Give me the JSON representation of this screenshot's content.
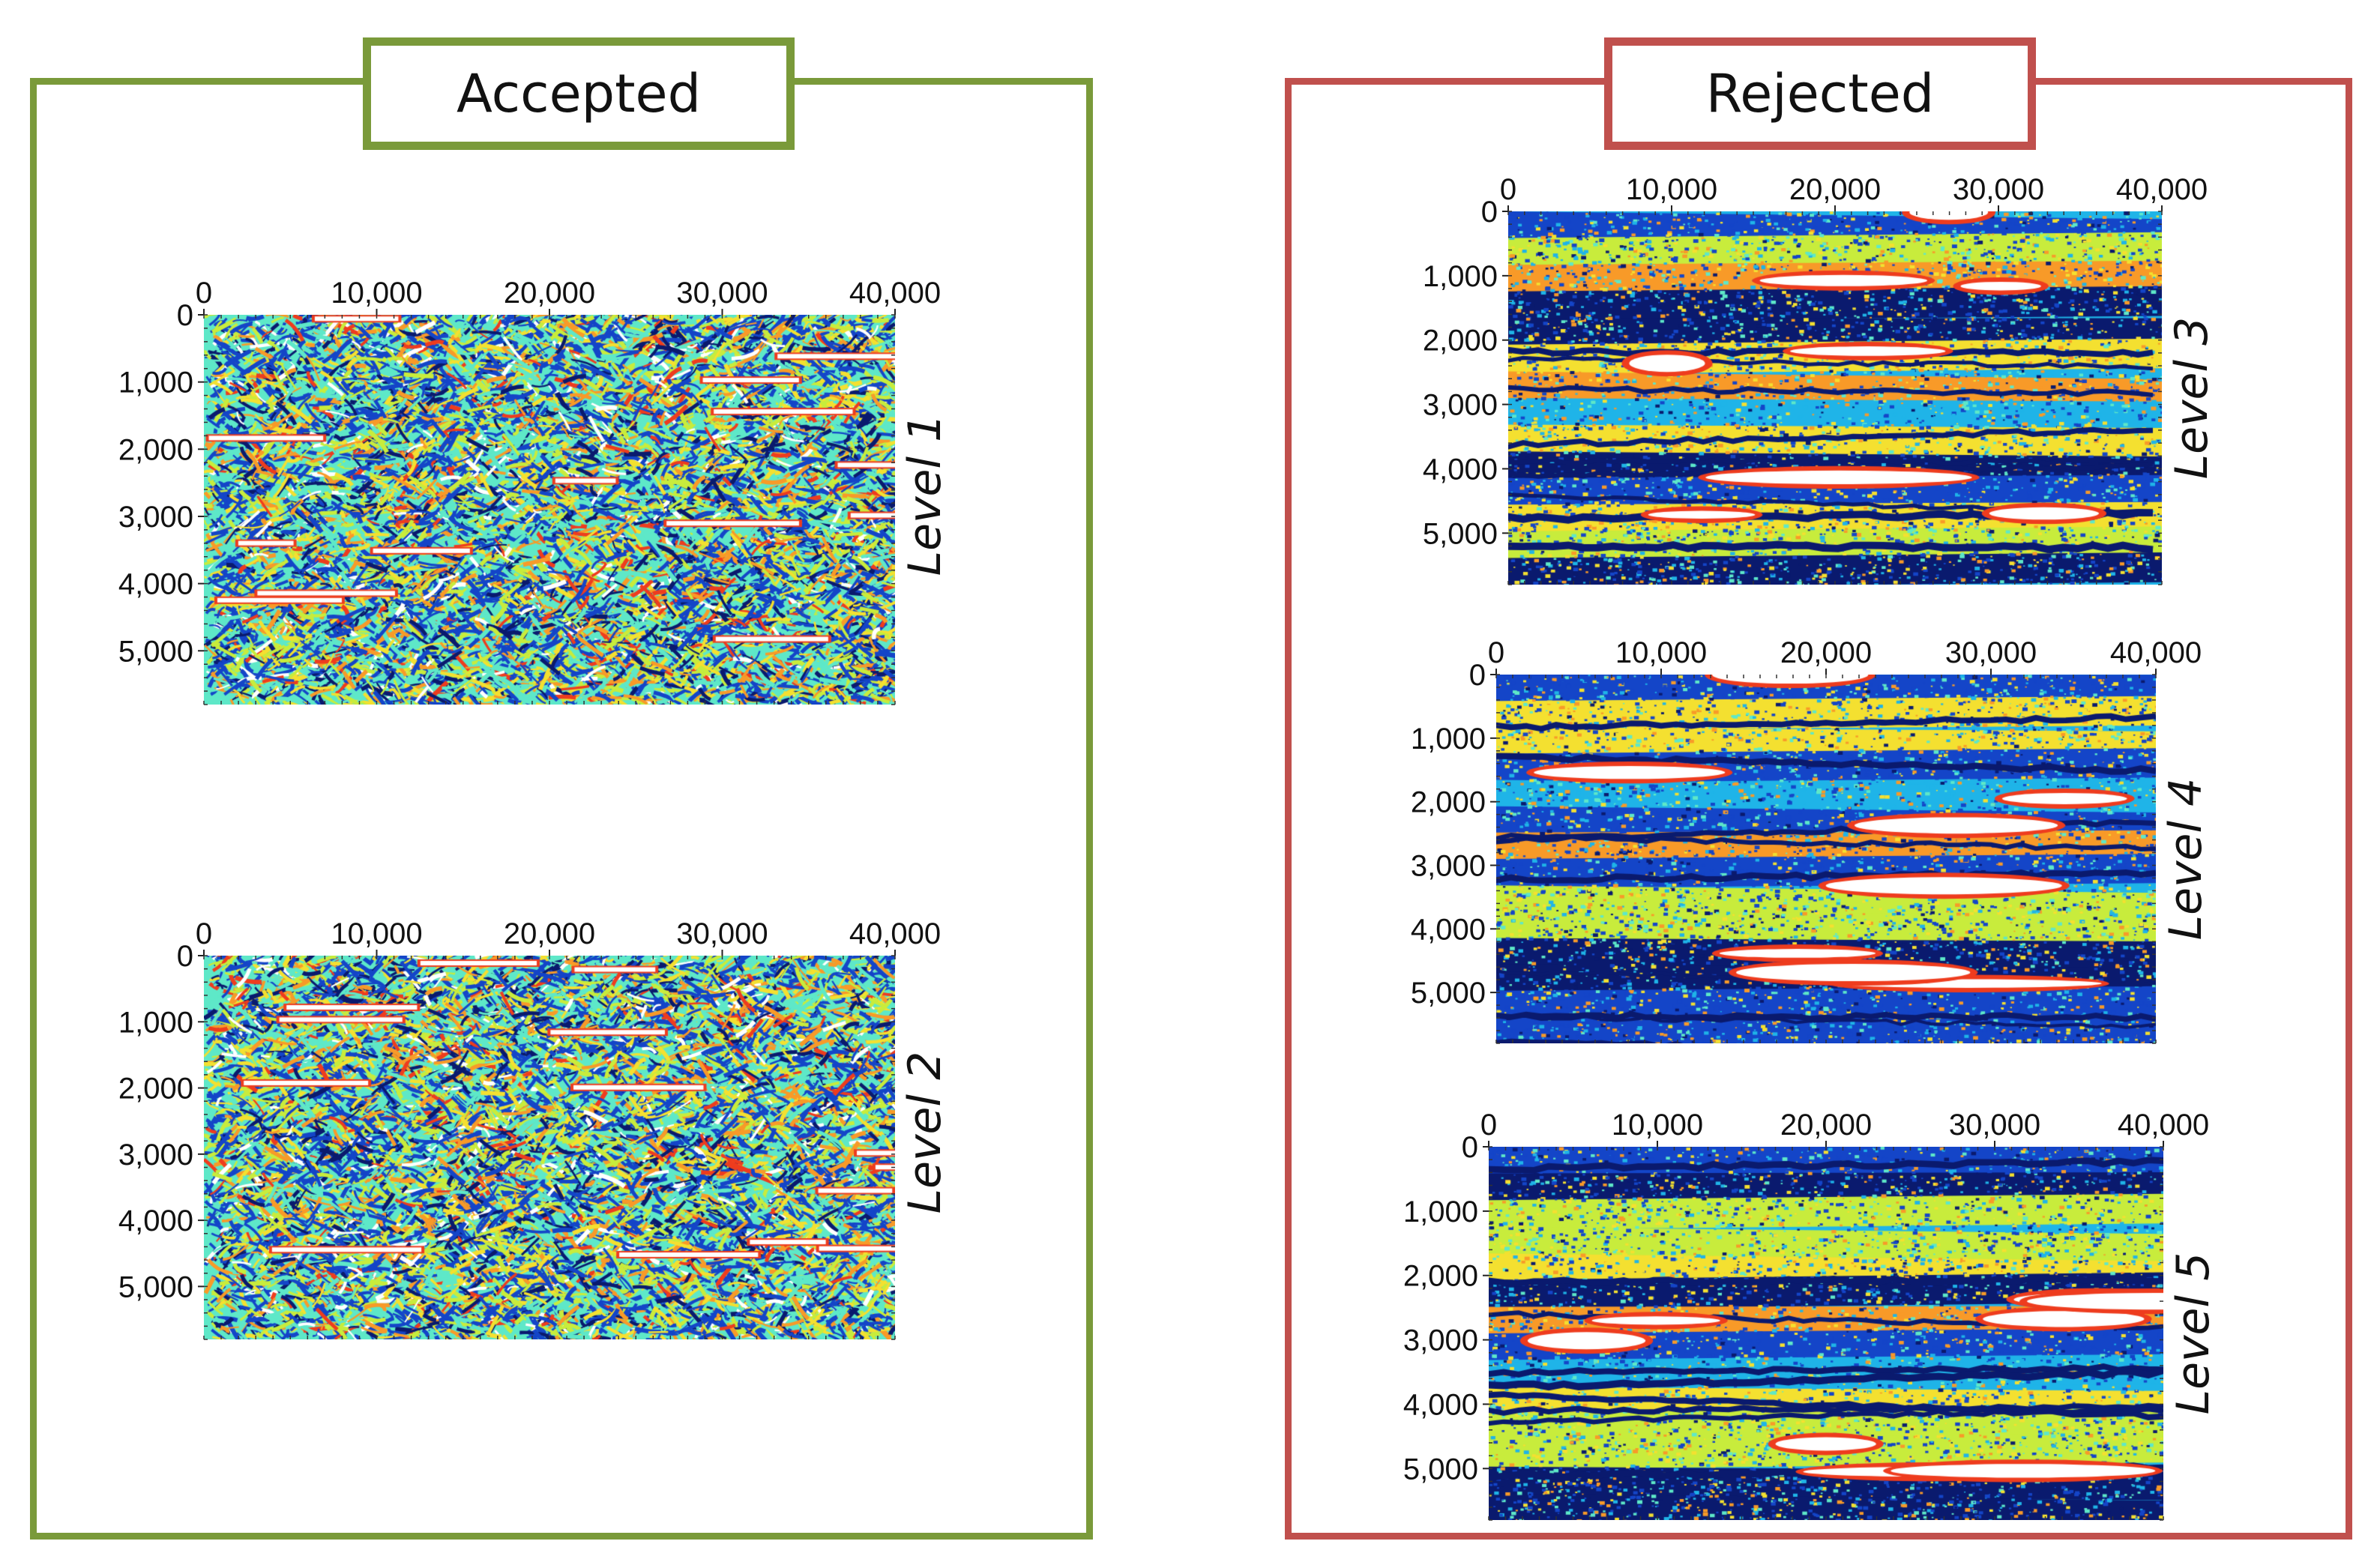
{
  "sections": {
    "accepted": {
      "title": "Accepted",
      "border_color": "#7a9a3a"
    },
    "rejected": {
      "title": "Rejected",
      "border_color": "#c0504d"
    }
  },
  "colormap": [
    "#0a1a6e",
    "#1445c8",
    "#1fb4e8",
    "#5ee8c8",
    "#c8ec3c",
    "#f4e030",
    "#f89a28",
    "#ee3c1e",
    "#f8c8c0",
    "#ffffff"
  ],
  "chart_data": [
    {
      "type": "heatmap",
      "group": "Accepted",
      "level_label": "Level 1",
      "x_ticks": [
        "0",
        "10,000",
        "20,000",
        "30,000",
        "40,000"
      ],
      "y_ticks": [
        "0",
        "1,000",
        "2,000",
        "3,000",
        "4,000",
        "5,000"
      ],
      "xlim": [
        0,
        40000
      ],
      "ylim": [
        0,
        5800
      ],
      "pattern": "noisy"
    },
    {
      "type": "heatmap",
      "group": "Accepted",
      "level_label": "Level 2",
      "x_ticks": [
        "0",
        "10,000",
        "20,000",
        "30,000",
        "40,000"
      ],
      "y_ticks": [
        "0",
        "1,000",
        "2,000",
        "3,000",
        "4,000",
        "5,000"
      ],
      "xlim": [
        0,
        40000
      ],
      "ylim": [
        0,
        5800
      ],
      "pattern": "noisy"
    },
    {
      "type": "heatmap",
      "group": "Rejected",
      "level_label": "Level 3",
      "x_ticks": [
        "0",
        "10,000",
        "20,000",
        "30,000",
        "40,000"
      ],
      "y_ticks": [
        "0",
        "1,000",
        "2,000",
        "3,000",
        "4,000",
        "5,000"
      ],
      "xlim": [
        0,
        40000
      ],
      "ylim": [
        0,
        5800
      ],
      "pattern": "layered"
    },
    {
      "type": "heatmap",
      "group": "Rejected",
      "level_label": "Level 4",
      "x_ticks": [
        "0",
        "10,000",
        "20,000",
        "30,000",
        "40,000"
      ],
      "y_ticks": [
        "0",
        "1,000",
        "2,000",
        "3,000",
        "4,000",
        "5,000"
      ],
      "xlim": [
        0,
        40000
      ],
      "ylim": [
        0,
        5800
      ],
      "pattern": "layered"
    },
    {
      "type": "heatmap",
      "group": "Rejected",
      "level_label": "Level 5",
      "x_ticks": [
        "0",
        "10,000",
        "20,000",
        "30,000",
        "40,000"
      ],
      "y_ticks": [
        "0",
        "1,000",
        "2,000",
        "3,000",
        "4,000",
        "5,000"
      ],
      "xlim": [
        0,
        40000
      ],
      "ylim": [
        0,
        5800
      ],
      "pattern": "layered"
    }
  ]
}
